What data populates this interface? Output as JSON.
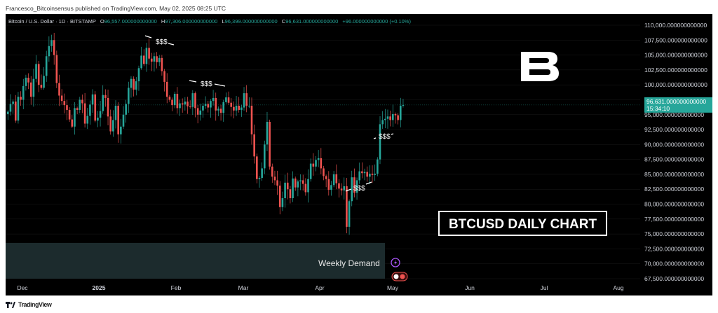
{
  "header": {
    "publish_line": "Francesco_Bitcoinsensus published on TradingView.com, May 02, 2025 08:25 UTC"
  },
  "legend": {
    "symbol": "Bitcoin / U.S. Dollar · 1D · BITSTAMP",
    "o_label": "O",
    "o_value": "96,557.000000000000",
    "h_label": "H",
    "h_value": "97,306.000000000000",
    "l_label": "L",
    "l_value": "96,399.000000000000",
    "c_label": "C",
    "c_value": "96,631.000000000000",
    "change": "+96.000000000000 (+0.10%)"
  },
  "price_badge": {
    "price": "96,631.000000000000",
    "countdown": "15:34:10"
  },
  "annotations": {
    "liquidity_label": "$$$",
    "demand_zone_label": "Weekly Demand",
    "title_box": "BTCUSD DAILY CHART"
  },
  "footer": {
    "brand": "TradingView"
  },
  "colors": {
    "background": "#000000",
    "up_candle": "#26a69a",
    "down_candle": "#ef5350",
    "demand_zone": "#1c2b2d",
    "price_badge": "#26a69a",
    "grid": "#1a1a1a"
  },
  "chart_data": {
    "type": "candlestick",
    "title": "",
    "ylim": [
      67500,
      111000
    ],
    "y_ticks": [
      "110,000.000000000000",
      "107,500.000000000000",
      "105,000.000000000000",
      "102,500.000000000000",
      "100,000.000000000000",
      "97,500.000000000000",
      "95,000.000000000000",
      "92,500.000000000000",
      "90,000.000000000000",
      "87,500.000000000000",
      "85,000.000000000000",
      "82,500.000000000000",
      "80,000.000000000000",
      "77,500.000000000000",
      "75,000.000000000000",
      "72,500.000000000000",
      "70,000.000000000000",
      "67,500.000000000000"
    ],
    "x_ticks": [
      "Dec",
      "2025",
      "Feb",
      "Mar",
      "Apr",
      "May",
      "Jun",
      "Jul",
      "Aug"
    ],
    "last_price": 96631,
    "demand_zone": [
      67500,
      73500
    ],
    "closes": [
      95500,
      96800,
      97200,
      94000,
      98000,
      97500,
      99800,
      101200,
      100400,
      98000,
      101000,
      103500,
      100000,
      99500,
      101500,
      104800,
      106500,
      107500,
      105000,
      100300,
      98200,
      97300,
      96600,
      95800,
      94200,
      93000,
      96100,
      95800,
      97500,
      96900,
      93500,
      94800,
      96700,
      98400,
      94000,
      94500,
      95600,
      98300,
      97800,
      94700,
      92200,
      94100,
      96500,
      91700,
      93000,
      95000,
      96800,
      99500,
      101000,
      99200,
      100600,
      102800,
      104900,
      103500,
      106200,
      104400,
      103900,
      104800,
      103800,
      104500,
      102300,
      100500,
      98000,
      97500,
      96600,
      98500,
      96100,
      96900,
      96700,
      97200,
      96400,
      96300,
      98600,
      96100,
      95000,
      95700,
      96500,
      96800,
      96200,
      97300,
      97800,
      95700,
      96000,
      95300,
      97100,
      97900,
      97000,
      96300,
      95700,
      96500,
      95800,
      96200,
      98600,
      96500,
      96500,
      91700,
      88000,
      84200,
      84400,
      86000,
      90000,
      93800,
      86300,
      84600,
      84000,
      83100,
      79500,
      81000,
      83600,
      82500,
      81000,
      84300,
      82800,
      83800,
      84000,
      83400,
      82000,
      84200,
      86800,
      86300,
      87400,
      87700,
      86000,
      84700,
      84200,
      82400,
      83200,
      85000,
      83500,
      82600,
      82300,
      83000,
      76200,
      80500,
      84500,
      81900,
      84000,
      85500,
      85200,
      85400,
      84600,
      85100,
      84900,
      85100,
      87500,
      93400,
      94100,
      94300,
      94700,
      94100,
      95100,
      94900,
      94100,
      96500,
      96631
    ]
  }
}
